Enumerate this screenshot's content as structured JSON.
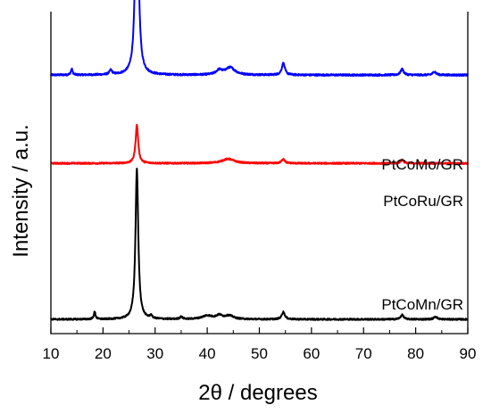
{
  "chart_data": {
    "type": "line",
    "title": "",
    "xlabel": "2θ / degrees",
    "ylabel": "Intensity / a.u.",
    "xlim": [
      10,
      90
    ],
    "xticks": [
      10,
      20,
      30,
      40,
      50,
      60,
      70,
      80,
      90
    ],
    "y_scale": "arbitrary units, stacked traces with vertical offset",
    "grid": false,
    "legend": "none; series labeled directly above each trace on the right",
    "series": [
      {
        "name": "PtCoMo/GR",
        "color": "#0000ff",
        "baseline": 0.83,
        "noise": 0.006,
        "peaks": [
          {
            "x": 26.5,
            "height": 0.83,
            "width": 0.32
          },
          {
            "x": 14.0,
            "height": 0.02,
            "width": 0.2
          },
          {
            "x": 21.5,
            "height": 0.015,
            "width": 0.3
          },
          {
            "x": 42.3,
            "height": 0.015,
            "width": 0.7
          },
          {
            "x": 44.4,
            "height": 0.025,
            "width": 1.1
          },
          {
            "x": 54.6,
            "height": 0.04,
            "width": 0.35
          },
          {
            "x": 77.4,
            "height": 0.02,
            "width": 0.35
          },
          {
            "x": 83.6,
            "height": 0.012,
            "width": 0.35
          }
        ]
      },
      {
        "name": "PtCoRu/GR",
        "color": "#ff0000",
        "baseline": 0.53,
        "noise": 0.005,
        "peaks": [
          {
            "x": 26.5,
            "height": 0.13,
            "width": 0.3
          },
          {
            "x": 44.0,
            "height": 0.015,
            "width": 1.4
          },
          {
            "x": 54.6,
            "height": 0.015,
            "width": 0.35
          },
          {
            "x": 77.4,
            "height": 0.012,
            "width": 0.35
          }
        ]
      },
      {
        "name": "PtCoMn/GR",
        "color": "#000000",
        "baseline": 0.0,
        "noise": 0.005,
        "peaks": [
          {
            "x": 26.5,
            "height": 0.51,
            "width": 0.32
          },
          {
            "x": 18.4,
            "height": 0.025,
            "width": 0.2
          },
          {
            "x": 29.2,
            "height": 0.01,
            "width": 0.25
          },
          {
            "x": 35.0,
            "height": 0.008,
            "width": 0.3
          },
          {
            "x": 40.0,
            "height": 0.012,
            "width": 1.2
          },
          {
            "x": 42.3,
            "height": 0.012,
            "width": 0.7
          },
          {
            "x": 44.2,
            "height": 0.012,
            "width": 1.0
          },
          {
            "x": 54.6,
            "height": 0.025,
            "width": 0.35
          },
          {
            "x": 77.4,
            "height": 0.015,
            "width": 0.35
          },
          {
            "x": 83.8,
            "height": 0.01,
            "width": 0.35
          }
        ]
      }
    ]
  }
}
